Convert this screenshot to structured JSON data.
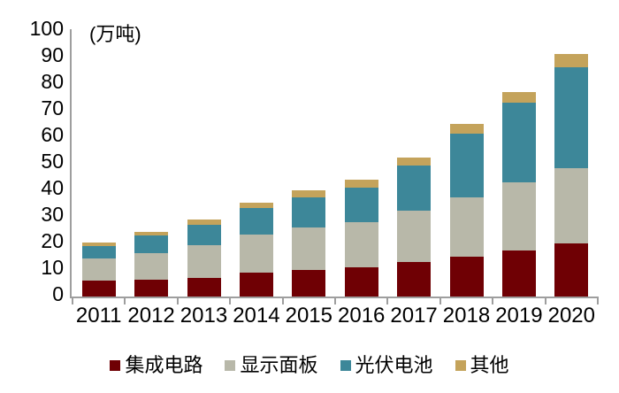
{
  "chart_data": {
    "type": "bar",
    "stacked": true,
    "unit_label": "(万吨)",
    "categories": [
      "2011",
      "2012",
      "2013",
      "2014",
      "2015",
      "2016",
      "2017",
      "2018",
      "2019",
      "2020"
    ],
    "series": [
      {
        "name": "集成电路",
        "key": "ic",
        "color": "#6F0004",
        "values": [
          6,
          6.5,
          7,
          9,
          10,
          11,
          13,
          15,
          17.5,
          20
        ]
      },
      {
        "name": "显示面板",
        "key": "display-panel",
        "color": "#B8B8A9",
        "values": [
          8.5,
          10,
          12.5,
          14.5,
          16,
          17,
          19.5,
          22.5,
          25.5,
          28.5
        ]
      },
      {
        "name": "光伏电池",
        "key": "pv-cell",
        "color": "#3D8799",
        "values": [
          4.5,
          6.5,
          7.5,
          10,
          11.5,
          13,
          17,
          24,
          30,
          38
        ]
      },
      {
        "name": "其他",
        "key": "other",
        "color": "#C4A35B",
        "values": [
          1.5,
          1.5,
          2,
          2,
          2.5,
          3,
          3,
          3.5,
          4,
          5
        ]
      }
    ],
    "totals": [
      20.5,
      24.5,
      29,
      35.5,
      40,
      44,
      52.5,
      65,
      77,
      91.5
    ],
    "y_axis": {
      "min": 0,
      "max": 100,
      "step": 10,
      "tick_labels": [
        "0",
        "10",
        "20",
        "30",
        "40",
        "50",
        "60",
        "70",
        "80",
        "90",
        "100"
      ]
    },
    "x_axis": {
      "tick_labels": [
        "2011",
        "2012",
        "2013",
        "2014",
        "2015",
        "2016",
        "2017",
        "2018",
        "2019",
        "2020"
      ]
    },
    "legend": {
      "position": "bottom",
      "entries": [
        "集成电路",
        "显示面板",
        "光伏电池",
        "其他"
      ]
    },
    "grid": false,
    "axis_color": "#9E9E9E",
    "text_color": "#000000"
  }
}
